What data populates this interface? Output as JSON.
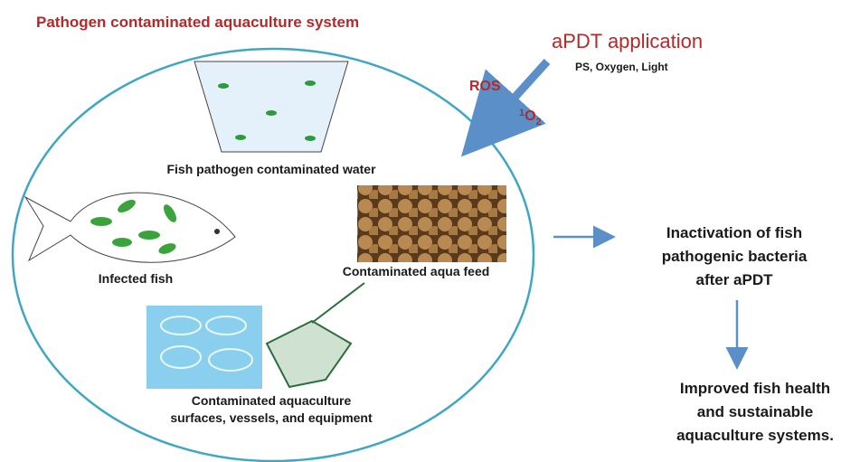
{
  "title": "Pathogen contaminated aquaculture system",
  "application": {
    "title": "aPDT application",
    "components": "PS, Oxygen, Light"
  },
  "ros": {
    "label": "ROS",
    "singlet_oxygen": {
      "superscript": "1",
      "base": "O",
      "subscript": "2"
    }
  },
  "sources": {
    "water": "Fish pathogen contaminated water",
    "fish": "Infected fish",
    "feed": "Contaminated aqua feed",
    "equipment": [
      "Contaminated aquaculture",
      "surfaces, vessels, and equipment"
    ]
  },
  "outcomes": {
    "inactivation": [
      "Inactivation of fish",
      "pathogenic bacteria",
      "after aPDT"
    ],
    "improvement": [
      "Improved fish health",
      "and sustainable",
      "aquaculture systems."
    ]
  }
}
